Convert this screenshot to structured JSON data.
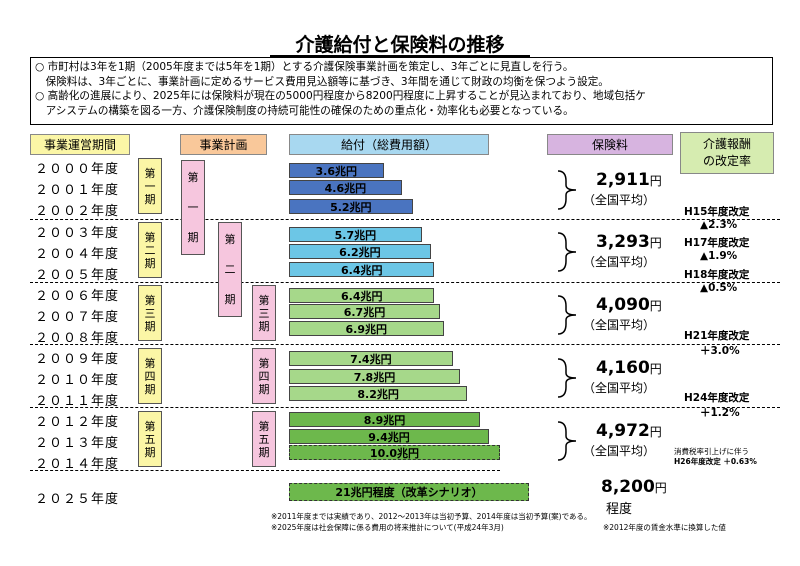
{
  "title": "介護給付と保険料の推移",
  "intro": [
    "○ 市町村は3年を1期（2005年度までは5年を1期）とする介護保険事業計画を策定し、3年ごとに見直しを行う。",
    "　保険料は、3年ごとに、事業計画に定めるサービス費用見込額等に基づき、3年間を通じて財政の均衡を保つよう設定。",
    "○ 高齢化の進展により、2025年には保険料が現在の5000円程度から8200円程度に上昇することが見込まれており、地域包括ケ",
    "　アシステムの構築を図る一方、介護保険制度の持続可能性の確保のための重点化・効率化も必要となっている。"
  ],
  "headers": {
    "operation_period": "事業運営期間",
    "plan": "事業計画",
    "benefit": "給付（総費用額）",
    "premium": "保険料",
    "revision_rate": "介護報酬\nの改定率"
  },
  "years": [
    "２０００年度",
    "２００１年度",
    "２００２年度",
    "２００３年度",
    "２００４年度",
    "２００５年度",
    "２００６年度",
    "２００７年度",
    "２００８年度",
    "２００９年度",
    "２０１０年度",
    "２０１１年度",
    "２０１２年度",
    "２０１３年度",
    "２０１４年度"
  ],
  "year_2025": "２０２５年度",
  "periods": {
    "p1": [
      "第",
      "一",
      "期"
    ],
    "p2": [
      "第",
      "二",
      "期"
    ],
    "p3": [
      "第",
      "三",
      "期"
    ],
    "p4": [
      "第",
      "四",
      "期"
    ],
    "p5": [
      "第",
      "五",
      "期"
    ]
  },
  "benefits": [
    "3.6兆円",
    "4.6兆円",
    "5.2兆円",
    "5.7兆円",
    "6.2兆円",
    "6.4兆円",
    "6.4兆円",
    "6.7兆円",
    "6.9兆円",
    "7.4兆円",
    "7.8兆円",
    "8.2兆円",
    "8.9兆円",
    "9.4兆円",
    "10.0兆円"
  ],
  "benefit_2025": "21兆円程度（改革シナリオ）",
  "premiums": [
    {
      "amount": "2,911",
      "unit": "円",
      "avg": "（全国平均）"
    },
    {
      "amount": "3,293",
      "unit": "円",
      "avg": "（全国平均）"
    },
    {
      "amount": "4,090",
      "unit": "円",
      "avg": "（全国平均）"
    },
    {
      "amount": "4,160",
      "unit": "円",
      "avg": "（全国平均）"
    },
    {
      "amount": "4,972",
      "unit": "円",
      "avg": "（全国平均）"
    }
  ],
  "premium_2025": {
    "amount": "8,200",
    "unit": "円",
    "extra": "程度"
  },
  "revisions": {
    "h15": "H15年度改定",
    "h15_rate": "▲2.3%",
    "h17": "H17年度改定",
    "h17_rate": "▲1.9%",
    "h18": "H18年度改定",
    "h18_rate": "▲0.5%",
    "h21": "H21年度改定",
    "h21_rate": "＋3.0%",
    "h24": "H24年度改定",
    "h24_rate": "＋1.2%",
    "h26_a": "消費税率引上げに伴う",
    "h26_b": "H26年度改定 ＋0.63%"
  },
  "notes": {
    "n1": "※2011年度までは実績であり、2012～2013年は当初予算、2014年度は当初予算(案)である。",
    "n2": "※2025年度は社会保障に係る費用の将来推計について(平成24年3月)",
    "n3": "※2012年度の賃金水準に換算した値"
  },
  "colors": {
    "period_header": "#fbf6a6",
    "plan_header": "#f9c89a",
    "benefit_header": "#a8d8f0",
    "premium_header": "#d7b4e0",
    "revision_header": "#d6ecb0",
    "bars_p1": "#4a74c0",
    "bars_p2": "#6cc6e6",
    "bars_p3": "#a6d88a",
    "bars_p4": "#a6d88a",
    "bars_p5": "#6db84c"
  }
}
